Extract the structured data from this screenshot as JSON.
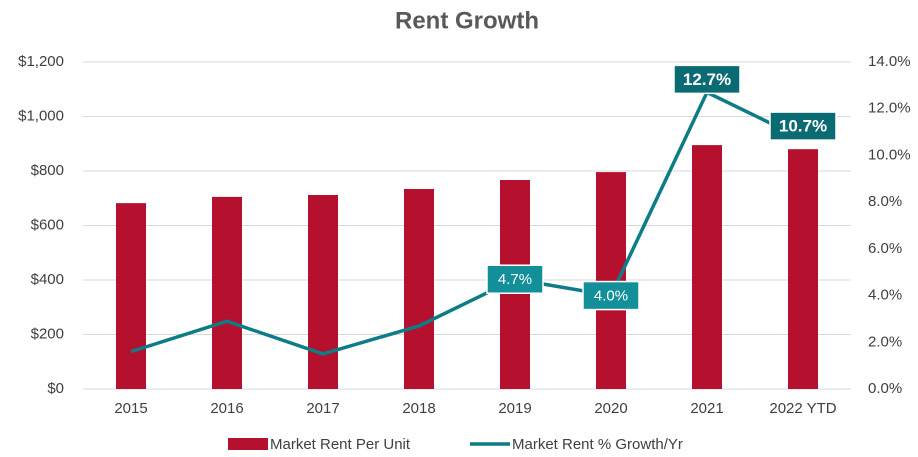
{
  "chart_data": {
    "type": "bar-line",
    "title": "Rent Growth",
    "categories": [
      "2015",
      "2016",
      "2017",
      "2018",
      "2019",
      "2020",
      "2021",
      "2022 YTD"
    ],
    "series": [
      {
        "name": "Market Rent Per Unit",
        "color": "#b5112e",
        "type": "bar",
        "values": [
          682,
          705,
          712,
          734,
          767,
          796,
          895,
          880
        ]
      },
      {
        "name": "Market Rent % Growth/Yr",
        "color": "#0e7c86",
        "type": "line",
        "axis": "y2",
        "values": [
          1.6,
          2.9,
          1.5,
          2.7,
          4.7,
          4.0,
          12.7,
          10.7
        ],
        "value_labels": [
          null,
          null,
          null,
          null,
          "4.7%",
          "4.0%",
          "12.7%",
          "10.7%"
        ]
      }
    ],
    "ylim": [
      0,
      1200
    ],
    "yticks": [
      {
        "value": 0,
        "label": "$0"
      },
      {
        "value": 200,
        "label": "$200"
      },
      {
        "value": 400,
        "label": "$400"
      },
      {
        "value": 600,
        "label": "$600"
      },
      {
        "value": 800,
        "label": "$800"
      },
      {
        "value": 1000,
        "label": "$1,000"
      },
      {
        "value": 1200,
        "label": "$1,200"
      }
    ],
    "y2lim": [
      0,
      14
    ],
    "y2ticks": [
      {
        "value": 0,
        "label": "0.0%"
      },
      {
        "value": 2,
        "label": "2.0%"
      },
      {
        "value": 4,
        "label": "4.0%"
      },
      {
        "value": 6,
        "label": "6.0%"
      },
      {
        "value": 8,
        "label": "8.0%"
      },
      {
        "value": 10,
        "label": "10.0%"
      },
      {
        "value": 12,
        "label": "12.0%"
      },
      {
        "value": 14,
        "label": "14.0%"
      }
    ],
    "grid": true,
    "legend": "bottom"
  }
}
